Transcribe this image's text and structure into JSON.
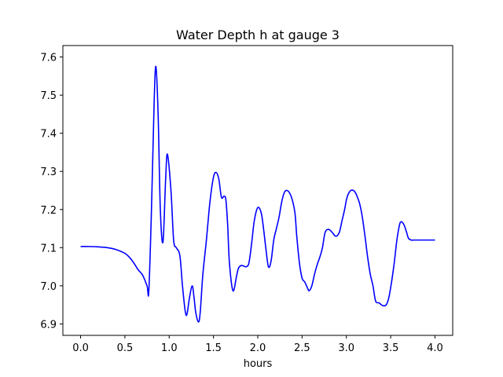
{
  "chart_data": {
    "type": "line",
    "title": "Water Depth h at gauge 3",
    "xlabel": "hours",
    "ylabel": "",
    "xlim": [
      -0.2,
      4.2
    ],
    "ylim": [
      6.87,
      7.63
    ],
    "xticks": [
      0.0,
      0.5,
      1.0,
      1.5,
      2.0,
      2.5,
      3.0,
      3.5,
      4.0
    ],
    "xtick_labels": [
      "0.0",
      "0.5",
      "1.0",
      "1.5",
      "2.0",
      "2.5",
      "3.0",
      "3.5",
      "4.0"
    ],
    "yticks": [
      6.9,
      7.0,
      7.1,
      7.2,
      7.3,
      7.4,
      7.5,
      7.6
    ],
    "ytick_labels": [
      "6.9",
      "7.0",
      "7.1",
      "7.2",
      "7.3",
      "7.4",
      "7.5",
      "7.6"
    ],
    "grid": false,
    "series": [
      {
        "color": "#0000ff",
        "x": [
          0.0,
          0.1,
          0.2,
          0.3,
          0.4,
          0.5,
          0.55,
          0.6,
          0.65,
          0.7,
          0.75,
          0.77,
          0.8,
          0.83,
          0.85,
          0.875,
          0.9,
          0.93,
          0.96,
          0.98,
          1.02,
          1.05,
          1.08,
          1.12,
          1.15,
          1.18,
          1.2,
          1.23,
          1.26,
          1.28,
          1.3,
          1.33,
          1.35,
          1.38,
          1.42,
          1.46,
          1.5,
          1.53,
          1.56,
          1.59,
          1.62,
          1.64,
          1.66,
          1.68,
          1.72,
          1.76,
          1.78,
          1.81,
          1.84,
          1.87,
          1.9,
          1.93,
          1.96,
          2.0,
          2.04,
          2.07,
          2.09,
          2.12,
          2.15,
          2.18,
          2.21,
          2.24,
          2.27,
          2.3,
          2.33,
          2.36,
          2.39,
          2.42,
          2.44,
          2.47,
          2.5,
          2.53,
          2.56,
          2.58,
          2.61,
          2.64,
          2.67,
          2.7,
          2.73,
          2.76,
          2.8,
          2.84,
          2.88,
          2.92,
          2.95,
          2.98,
          3.0,
          3.02,
          3.05,
          3.08,
          3.1,
          3.12,
          3.15,
          3.18,
          3.21,
          3.24,
          3.27,
          3.3,
          3.33,
          3.37,
          3.41,
          3.45,
          3.48,
          3.51,
          3.54,
          3.57,
          3.6,
          3.62,
          3.65,
          3.68,
          3.7,
          3.73,
          3.76,
          3.79,
          3.82,
          3.85,
          3.88,
          3.91,
          3.94,
          3.97,
          4.0
        ],
        "y": [
          7.103,
          7.103,
          7.102,
          7.1,
          7.095,
          7.085,
          7.075,
          7.06,
          7.042,
          7.028,
          7.0,
          6.986,
          7.2,
          7.48,
          7.575,
          7.45,
          7.2,
          7.115,
          7.28,
          7.345,
          7.25,
          7.12,
          7.1,
          7.08,
          7.0,
          6.935,
          6.925,
          6.97,
          7.0,
          6.97,
          6.93,
          6.905,
          6.93,
          7.03,
          7.12,
          7.22,
          7.285,
          7.297,
          7.28,
          7.232,
          7.235,
          7.225,
          7.16,
          7.06,
          6.987,
          7.025,
          7.045,
          7.053,
          7.052,
          7.05,
          7.06,
          7.11,
          7.17,
          7.205,
          7.19,
          7.14,
          7.1,
          7.05,
          7.065,
          7.12,
          7.15,
          7.18,
          7.22,
          7.245,
          7.25,
          7.243,
          7.225,
          7.19,
          7.13,
          7.06,
          7.02,
          7.01,
          6.995,
          6.987,
          7.0,
          7.03,
          7.055,
          7.075,
          7.1,
          7.14,
          7.148,
          7.14,
          7.13,
          7.14,
          7.17,
          7.2,
          7.225,
          7.24,
          7.25,
          7.25,
          7.245,
          7.235,
          7.215,
          7.18,
          7.13,
          7.075,
          7.03,
          7.0,
          6.96,
          6.955,
          6.948,
          6.95,
          6.97,
          7.01,
          7.06,
          7.12,
          7.16,
          7.168,
          7.16,
          7.14,
          7.125,
          7.12,
          7.12,
          7.12,
          7.12,
          7.12,
          7.12,
          7.12,
          7.12,
          7.12,
          7.12
        ]
      }
    ]
  }
}
